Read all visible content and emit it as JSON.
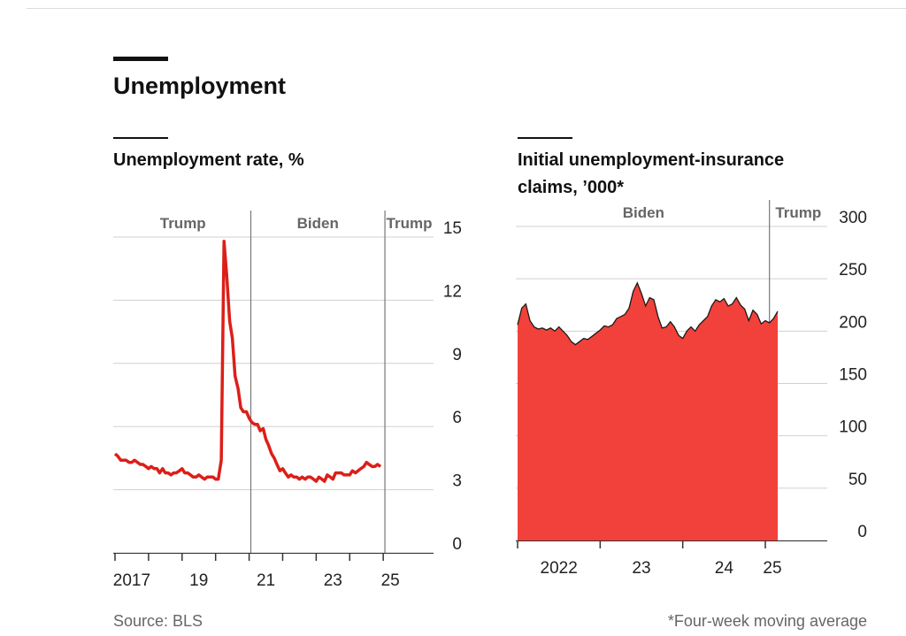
{
  "header": {
    "title": "Unemployment"
  },
  "chart_data": [
    {
      "type": "line",
      "subtitle": "Unemployment rate, %",
      "x": [
        2017.0,
        2017.08,
        2017.17,
        2017.25,
        2017.33,
        2017.42,
        2017.5,
        2017.58,
        2017.67,
        2017.75,
        2017.83,
        2017.92,
        2018.0,
        2018.08,
        2018.17,
        2018.25,
        2018.33,
        2018.42,
        2018.5,
        2018.58,
        2018.67,
        2018.75,
        2018.83,
        2018.92,
        2019.0,
        2019.08,
        2019.17,
        2019.25,
        2019.33,
        2019.42,
        2019.5,
        2019.58,
        2019.67,
        2019.75,
        2019.83,
        2019.92,
        2020.0,
        2020.08,
        2020.17,
        2020.25,
        2020.33,
        2020.42,
        2020.5,
        2020.58,
        2020.67,
        2020.75,
        2020.83,
        2020.92,
        2021.0,
        2021.08,
        2021.17,
        2021.25,
        2021.33,
        2021.42,
        2021.5,
        2021.58,
        2021.67,
        2021.75,
        2021.83,
        2021.92,
        2022.0,
        2022.08,
        2022.17,
        2022.25,
        2022.33,
        2022.42,
        2022.5,
        2022.58,
        2022.67,
        2022.75,
        2022.83,
        2022.92,
        2023.0,
        2023.08,
        2023.17,
        2023.25,
        2023.33,
        2023.42,
        2023.5,
        2023.58,
        2023.67,
        2023.75,
        2023.83,
        2023.92,
        2024.0,
        2024.08,
        2024.17,
        2024.25,
        2024.33,
        2024.42,
        2024.5,
        2024.58,
        2024.67,
        2024.75,
        2024.83,
        2024.92
      ],
      "series": [
        {
          "color": "#dc1f18",
          "values": [
            4.7,
            4.6,
            4.4,
            4.4,
            4.4,
            4.3,
            4.3,
            4.4,
            4.3,
            4.2,
            4.2,
            4.1,
            4.0,
            4.1,
            4.0,
            4.0,
            3.8,
            4.0,
            3.8,
            3.8,
            3.7,
            3.8,
            3.8,
            3.9,
            4.0,
            3.8,
            3.8,
            3.7,
            3.6,
            3.6,
            3.7,
            3.6,
            3.5,
            3.6,
            3.6,
            3.6,
            3.5,
            3.5,
            4.4,
            14.8,
            13.2,
            11.0,
            10.2,
            8.4,
            7.8,
            6.9,
            6.7,
            6.7,
            6.4,
            6.2,
            6.1,
            6.1,
            5.8,
            5.9,
            5.4,
            5.1,
            4.7,
            4.5,
            4.2,
            3.9,
            4.0,
            3.8,
            3.6,
            3.7,
            3.6,
            3.6,
            3.5,
            3.6,
            3.5,
            3.6,
            3.6,
            3.5,
            3.4,
            3.6,
            3.5,
            3.4,
            3.7,
            3.6,
            3.5,
            3.8,
            3.8,
            3.8,
            3.7,
            3.7,
            3.7,
            3.9,
            3.8,
            3.9,
            4.0,
            4.1,
            4.3,
            4.2,
            4.1,
            4.1,
            4.2,
            4.1
          ]
        }
      ],
      "xlim": [
        2017,
        2026.5
      ],
      "xticks": [
        {
          "value": 2017,
          "label": "2017"
        },
        {
          "value": 2019,
          "label": "19"
        },
        {
          "value": 2021,
          "label": "21"
        },
        {
          "value": 2023,
          "label": "23"
        },
        {
          "value": 2025,
          "label": "25"
        }
      ],
      "xminor": [
        2018,
        2020,
        2022,
        2024
      ],
      "ylim": [
        0,
        15
      ],
      "yticks": [
        0,
        3,
        6,
        9,
        12,
        15
      ],
      "grid": true,
      "periods": [
        {
          "name": "Trump",
          "start": 2017,
          "end": 2021.05
        },
        {
          "name": "Biden",
          "start": 2021.05,
          "end": 2025.05
        },
        {
          "name": "Trump",
          "start": 2025.05,
          "end": 2026.5
        }
      ]
    },
    {
      "type": "area",
      "subtitle": "Initial unemployment-insurance claims, ’000*",
      "x": [
        2022.0,
        2022.05,
        2022.1,
        2022.15,
        2022.2,
        2022.25,
        2022.3,
        2022.35,
        2022.4,
        2022.45,
        2022.5,
        2022.55,
        2022.6,
        2022.65,
        2022.7,
        2022.75,
        2022.8,
        2022.85,
        2022.9,
        2022.95,
        2023.0,
        2023.05,
        2023.1,
        2023.15,
        2023.2,
        2023.25,
        2023.3,
        2023.35,
        2023.4,
        2023.45,
        2023.5,
        2023.55,
        2023.6,
        2023.65,
        2023.7,
        2023.75,
        2023.8,
        2023.85,
        2023.9,
        2023.95,
        2024.0,
        2024.05,
        2024.1,
        2024.15,
        2024.2,
        2024.25,
        2024.3,
        2024.35,
        2024.4,
        2024.45,
        2024.5,
        2024.55,
        2024.6,
        2024.65,
        2024.7,
        2024.75,
        2024.8,
        2024.85,
        2024.9,
        2024.95,
        2025.0,
        2025.05,
        2025.1,
        2025.15
      ],
      "series": [
        {
          "color": "#f2413a",
          "line_color": "#1a1a1a",
          "values": [
            206,
            222,
            226,
            210,
            204,
            202,
            203,
            201,
            203,
            200,
            204,
            200,
            196,
            190,
            187,
            190,
            193,
            192,
            195,
            198,
            201,
            205,
            204,
            206,
            212,
            214,
            216,
            222,
            238,
            246,
            236,
            224,
            232,
            230,
            214,
            203,
            204,
            209,
            204,
            196,
            193,
            200,
            204,
            200,
            206,
            210,
            214,
            224,
            230,
            228,
            231,
            224,
            226,
            232,
            225,
            221,
            210,
            220,
            216,
            207,
            210,
            208,
            212,
            219
          ]
        }
      ],
      "xlim": [
        2022,
        2025.75
      ],
      "xticks": [
        {
          "value": 2022,
          "label": "2022"
        },
        {
          "value": 2023,
          "label": "23"
        },
        {
          "value": 2024,
          "label": "24"
        },
        {
          "value": 2025,
          "label": "25"
        }
      ],
      "ylim": [
        0,
        300
      ],
      "yticks": [
        0,
        50,
        100,
        150,
        200,
        250,
        300
      ],
      "grid": true,
      "periods": [
        {
          "name": "Biden",
          "start": 2022,
          "end": 2025.05
        },
        {
          "name": "Trump",
          "start": 2025.05,
          "end": 2025.75
        }
      ]
    }
  ],
  "footer": {
    "source": "Source: BLS",
    "note": "*Four-week moving average"
  }
}
